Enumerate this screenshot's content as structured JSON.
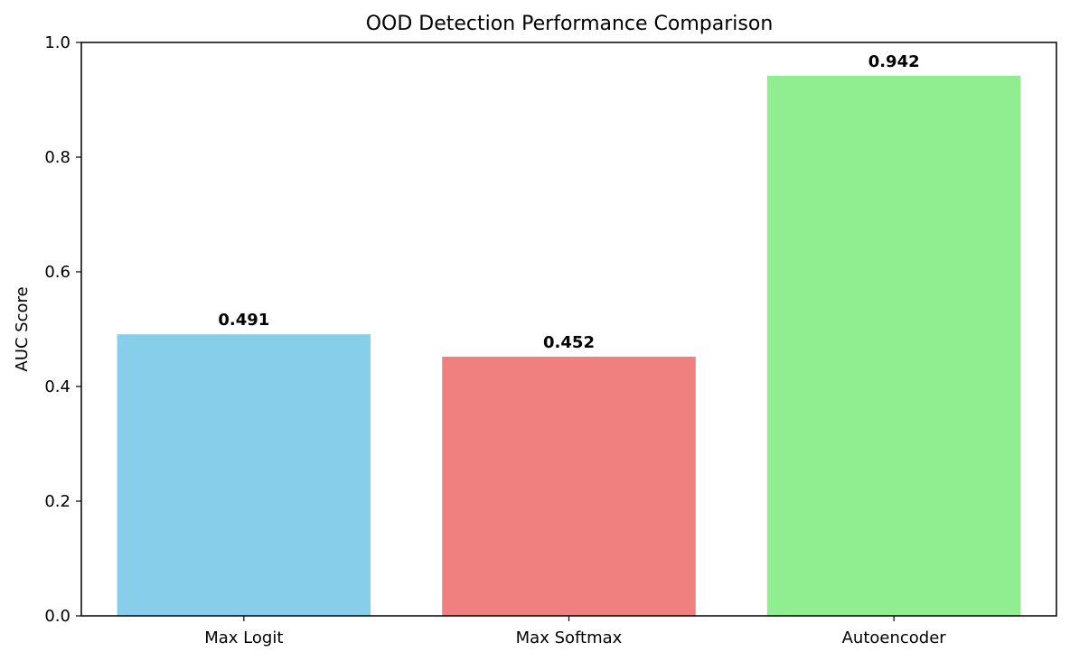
{
  "chart_data": {
    "type": "bar",
    "title": "OOD Detection Performance Comparison",
    "xlabel": "",
    "ylabel": "AUC Score",
    "categories": [
      "Max Logit",
      "Max Softmax",
      "Autoencoder"
    ],
    "values": [
      0.491,
      0.452,
      0.942
    ],
    "value_labels": [
      "0.491",
      "0.452",
      "0.942"
    ],
    "colors": [
      "#87ceeb",
      "#f08080",
      "#90ee90"
    ],
    "ylim": [
      0,
      1.0
    ],
    "yticks": [
      0.0,
      0.2,
      0.4,
      0.6,
      0.8,
      1.0
    ],
    "ytick_labels": [
      "0.0",
      "0.2",
      "0.4",
      "0.6",
      "0.8",
      "1.0"
    ],
    "grid": false,
    "legend": "none"
  }
}
